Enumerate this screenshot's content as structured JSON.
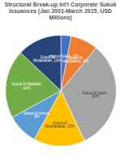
{
  "chart_data": {
    "type": "pie",
    "title": "Structural Break-up Int'l Corporate Sukuk Issuances (Jan 2001-March 2015, USD Millions)",
    "categories": [
      "Hybrid Sukuk",
      "Sukuk Al Murabahah",
      "Sukuk Al Ijarah",
      "Sukuk Al Musharakah",
      "Sukuk Al Istisna",
      "Sukuk Al Wakalah",
      "Sukuk Al Mudarabah"
    ],
    "values": [
      3,
      8,
      32,
      15,
      9,
      20,
      13
    ],
    "value_labels": [
      "Hybrid Sukuk, 3%",
      "Sukuk Al Murabahah, 8%",
      "Sukuk Al Ijarah, 32%",
      "Sukuk Al Musharakah, 15%",
      "Sukuk Al Istisna, 9%",
      "Sukuk Al Wakalah, 20%",
      "Sukuk Al Mudarabah, 13%"
    ],
    "colors": [
      "#4472c4",
      "#ed7d31",
      "#a5a5a5",
      "#ffc000",
      "#5b9bd5",
      "#70ad47",
      "#264478"
    ],
    "data_labels": true
  }
}
